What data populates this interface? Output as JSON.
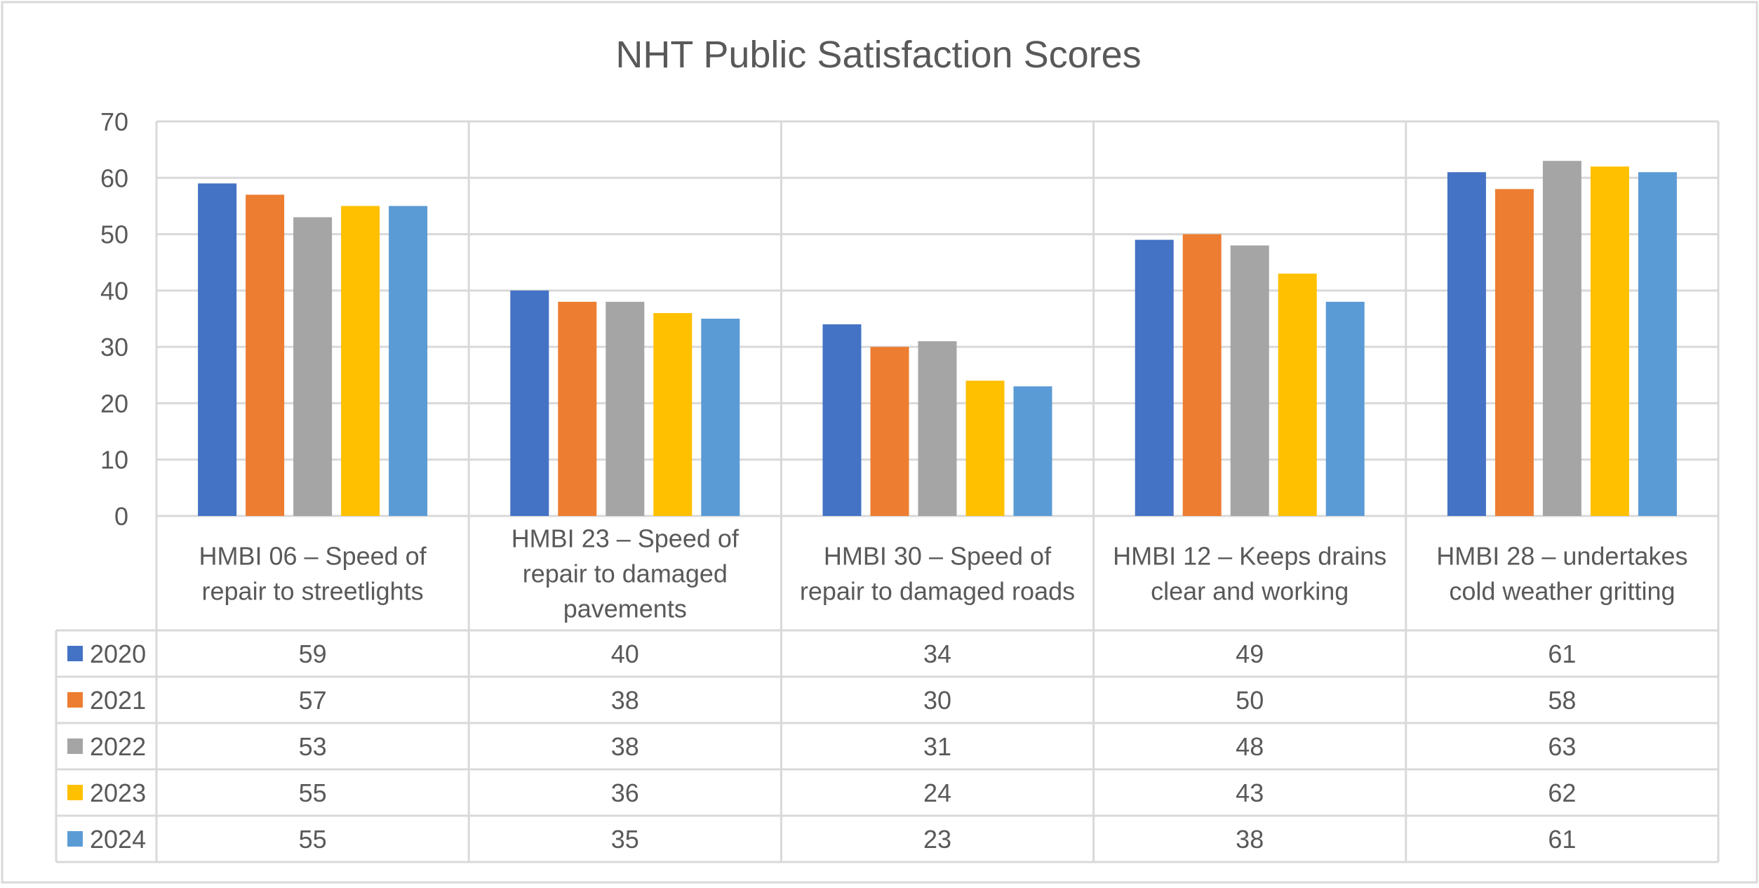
{
  "chart_data": {
    "type": "bar",
    "title": "NHT Public Satisfaction Scores",
    "xlabel": "",
    "ylabel": "",
    "ylim": [
      0,
      70
    ],
    "y_ticks": [
      "0",
      "10",
      "20",
      "30",
      "40",
      "50",
      "60",
      "70"
    ],
    "grid": true,
    "legend_placement": "data-table-left",
    "categories": [
      [
        "HMBI 06 – Speed of",
        "repair to streetlights"
      ],
      [
        "HMBI 23 – Speed of",
        "repair to damaged",
        "pavements"
      ],
      [
        "HMBI 30 – Speed of",
        "repair to damaged roads"
      ],
      [
        "HMBI 12 – Keeps drains",
        "clear and working"
      ],
      [
        "HMBI 28 – undertakes",
        "cold weather gritting"
      ]
    ],
    "series": [
      {
        "name": "2020",
        "color": "#4472C4",
        "values": [
          59,
          40,
          34,
          49,
          61
        ]
      },
      {
        "name": "2021",
        "color": "#ED7D31",
        "values": [
          57,
          38,
          30,
          50,
          58
        ]
      },
      {
        "name": "2022",
        "color": "#A5A5A5",
        "values": [
          53,
          38,
          31,
          48,
          63
        ]
      },
      {
        "name": "2023",
        "color": "#FFC000",
        "values": [
          55,
          36,
          24,
          43,
          62
        ]
      },
      {
        "name": "2024",
        "color": "#5B9BD5",
        "values": [
          55,
          35,
          23,
          38,
          61
        ]
      }
    ]
  }
}
